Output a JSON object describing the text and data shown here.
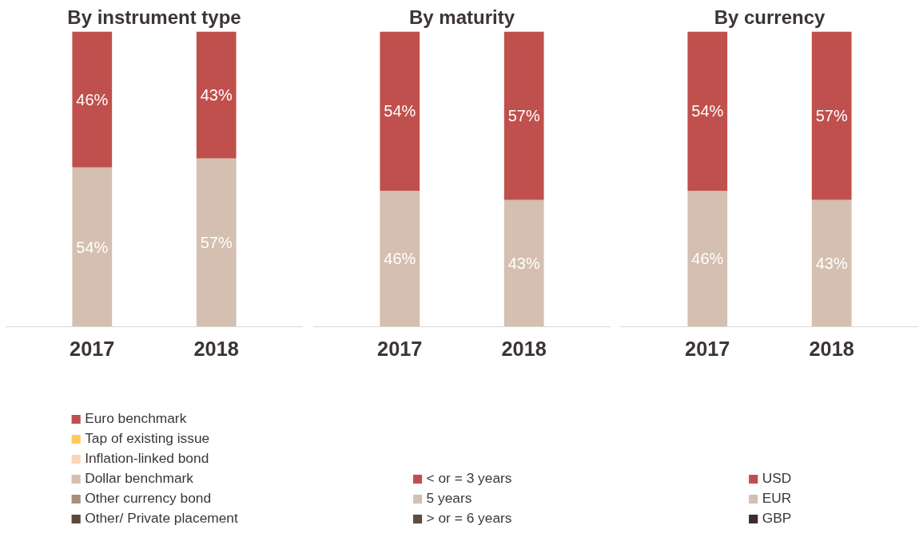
{
  "chart_data": [
    {
      "type": "bar",
      "title": "By instrument type",
      "categories": [
        "2017",
        "2018"
      ],
      "stacked": true,
      "tick_labels": "x",
      "legend": "bottom",
      "series": [
        {
          "name": "Other/ Private placement",
          "color": "#5b4a3a",
          "values": [
            null,
            null
          ]
        },
        {
          "name": "Other currency bond",
          "color": "#a8917a",
          "values": [
            null,
            null
          ]
        },
        {
          "name": "Dollar benchmark",
          "color": "#d4bfb0",
          "values": [
            54,
            57
          ],
          "value_labels": [
            "54%",
            "57%"
          ]
        },
        {
          "name": "Inflation-linked bond",
          "color": "#fbd5b5",
          "values": [
            null,
            null
          ]
        },
        {
          "name": "Tap of existing issue",
          "color": "#ffc95c",
          "values": [
            null,
            null
          ]
        },
        {
          "name": "Euro benchmark",
          "color": "#c0504d",
          "values": [
            46,
            43
          ],
          "value_labels": [
            "46%",
            "43%"
          ]
        }
      ]
    },
    {
      "type": "bar",
      "title": "By maturity",
      "categories": [
        "2017",
        "2018"
      ],
      "stacked": true,
      "tick_labels": "x",
      "legend": "bottom",
      "series": [
        {
          "name": "> or = 6 years",
          "color": "#5e4e3c",
          "values": [
            null,
            null
          ]
        },
        {
          "name": "5 years",
          "color": "#d4bfb0",
          "values": [
            46,
            43
          ],
          "value_labels": [
            "46%",
            "43%"
          ]
        },
        {
          "name": "< or = 3 years",
          "color": "#c0504d",
          "values": [
            54,
            57
          ],
          "value_labels": [
            "54%",
            "57%"
          ]
        }
      ]
    },
    {
      "type": "bar",
      "title": "By currency",
      "categories": [
        "2017",
        "2018"
      ],
      "stacked": true,
      "tick_labels": "x",
      "legend": "bottom",
      "series": [
        {
          "name": "GBP",
          "color": "#3d2b2f",
          "values": [
            null,
            null
          ]
        },
        {
          "name": "EUR",
          "color": "#d4bfb0",
          "values": [
            46,
            43
          ],
          "value_labels": [
            "46%",
            "43%"
          ]
        },
        {
          "name": "USD",
          "color": "#c0504d",
          "values": [
            54,
            57
          ],
          "value_labels": [
            "54%",
            "57%"
          ]
        }
      ]
    }
  ]
}
